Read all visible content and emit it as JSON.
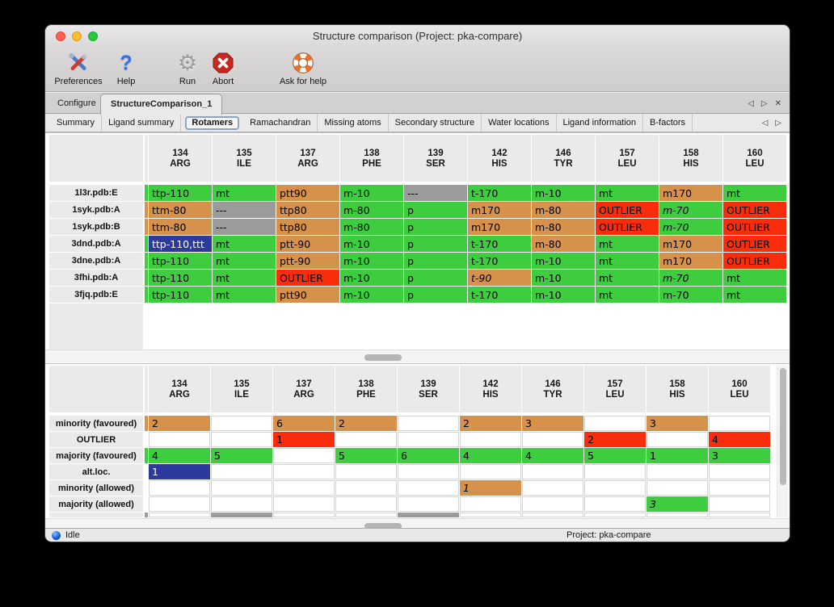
{
  "titlebar": {
    "title": "Structure comparison (Project: pka-compare)"
  },
  "toolbar": {
    "items": [
      {
        "id": "preferences",
        "label": "Preferences"
      },
      {
        "id": "help",
        "label": "Help"
      },
      {
        "id": "run",
        "label": "Run"
      },
      {
        "id": "abort",
        "label": "Abort"
      },
      {
        "id": "ask-for-help",
        "label": "Ask for help"
      }
    ]
  },
  "tabs": {
    "items": [
      "Configure",
      "StructureComparison_1"
    ],
    "active": 1
  },
  "subtabs": {
    "items": [
      "Summary",
      "Ligand summary",
      "Rotamers",
      "Ramachandran",
      "Missing atoms",
      "Secondary structure",
      "Water locations",
      "Ligand information",
      "B-factors"
    ],
    "active": 2
  },
  "icons": {
    "back": "◁",
    "forward": "▷",
    "close": "✕",
    "help_glyph": "?",
    "gear_glyph": "⚙"
  },
  "colors": {
    "green": "#3dcd3f",
    "orange": "#d6914b",
    "red": "#f92d0c",
    "gray": "#9b9b9b",
    "blue": "#2c3a9e"
  },
  "columns": [
    {
      "num": "134",
      "res": "ARG"
    },
    {
      "num": "135",
      "res": "ILE"
    },
    {
      "num": "137",
      "res": "ARG"
    },
    {
      "num": "138",
      "res": "PHE"
    },
    {
      "num": "139",
      "res": "SER"
    },
    {
      "num": "142",
      "res": "HIS"
    },
    {
      "num": "146",
      "res": "TYR"
    },
    {
      "num": "157",
      "res": "LEU"
    },
    {
      "num": "158",
      "res": "HIS"
    },
    {
      "num": "160",
      "res": "LEU"
    }
  ],
  "rotamer_table": {
    "rows": [
      {
        "label": "1l3r.pdb:E",
        "prev": "green",
        "cells": [
          {
            "t": "ttp-110",
            "c": "green"
          },
          {
            "t": "mt",
            "c": "green"
          },
          {
            "t": "ptt90",
            "c": "orange"
          },
          {
            "t": "m-10",
            "c": "green"
          },
          {
            "t": "---",
            "c": "gray"
          },
          {
            "t": "t-170",
            "c": "green"
          },
          {
            "t": "m-10",
            "c": "green"
          },
          {
            "t": "mt",
            "c": "green"
          },
          {
            "t": "m170",
            "c": "orange"
          },
          {
            "t": "mt",
            "c": "green"
          }
        ]
      },
      {
        "label": "1syk.pdb:A",
        "prev": "orange",
        "cells": [
          {
            "t": "ttm-80",
            "c": "orange"
          },
          {
            "t": "---",
            "c": "gray"
          },
          {
            "t": "ttp80",
            "c": "orange"
          },
          {
            "t": "m-80",
            "c": "green"
          },
          {
            "t": "p",
            "c": "green"
          },
          {
            "t": "m170",
            "c": "orange"
          },
          {
            "t": "m-80",
            "c": "orange"
          },
          {
            "t": "OUTLIER",
            "c": "red"
          },
          {
            "t": "m-70",
            "c": "green",
            "i": true
          },
          {
            "t": "OUTLIER",
            "c": "red"
          }
        ]
      },
      {
        "label": "1syk.pdb:B",
        "prev": "orange",
        "cells": [
          {
            "t": "ttm-80",
            "c": "orange"
          },
          {
            "t": "---",
            "c": "gray"
          },
          {
            "t": "ttp80",
            "c": "orange"
          },
          {
            "t": "m-80",
            "c": "green"
          },
          {
            "t": "p",
            "c": "green"
          },
          {
            "t": "m170",
            "c": "orange"
          },
          {
            "t": "m-80",
            "c": "orange"
          },
          {
            "t": "OUTLIER",
            "c": "red"
          },
          {
            "t": "m-70",
            "c": "green",
            "i": true
          },
          {
            "t": "OUTLIER",
            "c": "red"
          }
        ]
      },
      {
        "label": "3dnd.pdb:A",
        "prev": "green",
        "cells": [
          {
            "t": "ttp-110,ttt",
            "c": "blue",
            "sel": true
          },
          {
            "t": "mt",
            "c": "green"
          },
          {
            "t": "ptt-90",
            "c": "orange"
          },
          {
            "t": "m-10",
            "c": "green"
          },
          {
            "t": "p",
            "c": "green"
          },
          {
            "t": "t-170",
            "c": "green"
          },
          {
            "t": "m-80",
            "c": "orange"
          },
          {
            "t": "mt",
            "c": "green"
          },
          {
            "t": "m170",
            "c": "orange"
          },
          {
            "t": "OUTLIER",
            "c": "red"
          }
        ]
      },
      {
        "label": "3dne.pdb:A",
        "prev": "green",
        "cells": [
          {
            "t": "ttp-110",
            "c": "green"
          },
          {
            "t": "mt",
            "c": "green"
          },
          {
            "t": "ptt-90",
            "c": "orange"
          },
          {
            "t": "m-10",
            "c": "green"
          },
          {
            "t": "p",
            "c": "green"
          },
          {
            "t": "t-170",
            "c": "green"
          },
          {
            "t": "m-10",
            "c": "green"
          },
          {
            "t": "mt",
            "c": "green"
          },
          {
            "t": "m170",
            "c": "orange"
          },
          {
            "t": "OUTLIER",
            "c": "red"
          }
        ]
      },
      {
        "label": "3fhi.pdb:A",
        "prev": "green",
        "cells": [
          {
            "t": "ttp-110",
            "c": "green"
          },
          {
            "t": "mt",
            "c": "green"
          },
          {
            "t": "OUTLIER",
            "c": "red"
          },
          {
            "t": "m-10",
            "c": "green"
          },
          {
            "t": "p",
            "c": "green"
          },
          {
            "t": "t-90",
            "c": "orange",
            "i": true
          },
          {
            "t": "m-10",
            "c": "green"
          },
          {
            "t": "mt",
            "c": "green"
          },
          {
            "t": "m-70",
            "c": "green",
            "i": true
          },
          {
            "t": "mt",
            "c": "green"
          }
        ]
      },
      {
        "label": "3fjq.pdb:E",
        "prev": "green",
        "cells": [
          {
            "t": "ttp-110",
            "c": "green"
          },
          {
            "t": "mt",
            "c": "green"
          },
          {
            "t": "ptt90",
            "c": "orange"
          },
          {
            "t": "m-10",
            "c": "green"
          },
          {
            "t": "p",
            "c": "green"
          },
          {
            "t": "t-170",
            "c": "green"
          },
          {
            "t": "m-10",
            "c": "green"
          },
          {
            "t": "mt",
            "c": "green"
          },
          {
            "t": "m-70",
            "c": "green"
          },
          {
            "t": "mt",
            "c": "green"
          }
        ]
      }
    ]
  },
  "summary_table": {
    "rows": [
      {
        "label": "minority (favoured)",
        "prev": "orange",
        "cells": [
          {
            "t": "2",
            "c": "orange"
          },
          null,
          {
            "t": "6",
            "c": "orange"
          },
          {
            "t": "2",
            "c": "orange"
          },
          null,
          {
            "t": "2",
            "c": "orange"
          },
          {
            "t": "3",
            "c": "orange"
          },
          null,
          {
            "t": "3",
            "c": "orange"
          },
          null
        ]
      },
      {
        "label": "OUTLIER",
        "prev": null,
        "cells": [
          null,
          null,
          {
            "t": "1",
            "c": "red"
          },
          null,
          null,
          null,
          null,
          {
            "t": "2",
            "c": "red"
          },
          null,
          {
            "t": "4",
            "c": "red"
          }
        ]
      },
      {
        "label": "majority (favoured)",
        "prev": "green",
        "cells": [
          {
            "t": "4",
            "c": "green"
          },
          {
            "t": "5",
            "c": "green"
          },
          null,
          {
            "t": "5",
            "c": "green"
          },
          {
            "t": "6",
            "c": "green"
          },
          {
            "t": "4",
            "c": "green"
          },
          {
            "t": "4",
            "c": "green"
          },
          {
            "t": "5",
            "c": "green"
          },
          {
            "t": "1",
            "c": "green"
          },
          {
            "t": "3",
            "c": "green"
          }
        ]
      },
      {
        "label": "alt.loc.",
        "prev": null,
        "cells": [
          {
            "t": "1",
            "c": "blue"
          },
          null,
          null,
          null,
          null,
          null,
          null,
          null,
          null,
          null
        ]
      },
      {
        "label": "minority (allowed)",
        "prev": null,
        "cells": [
          null,
          null,
          null,
          null,
          null,
          {
            "t": "1",
            "c": "orange",
            "i": true
          },
          null,
          null,
          null,
          null
        ]
      },
      {
        "label": "majority (allowed)",
        "prev": null,
        "cells": [
          null,
          null,
          null,
          null,
          null,
          null,
          null,
          null,
          {
            "t": "3",
            "c": "green",
            "i": true
          },
          null
        ]
      }
    ],
    "partial_row": {
      "prev": "gray",
      "gray_cols": [
        1,
        4
      ]
    }
  },
  "statusbar": {
    "left": "Idle",
    "right": "Project: pka-compare"
  }
}
